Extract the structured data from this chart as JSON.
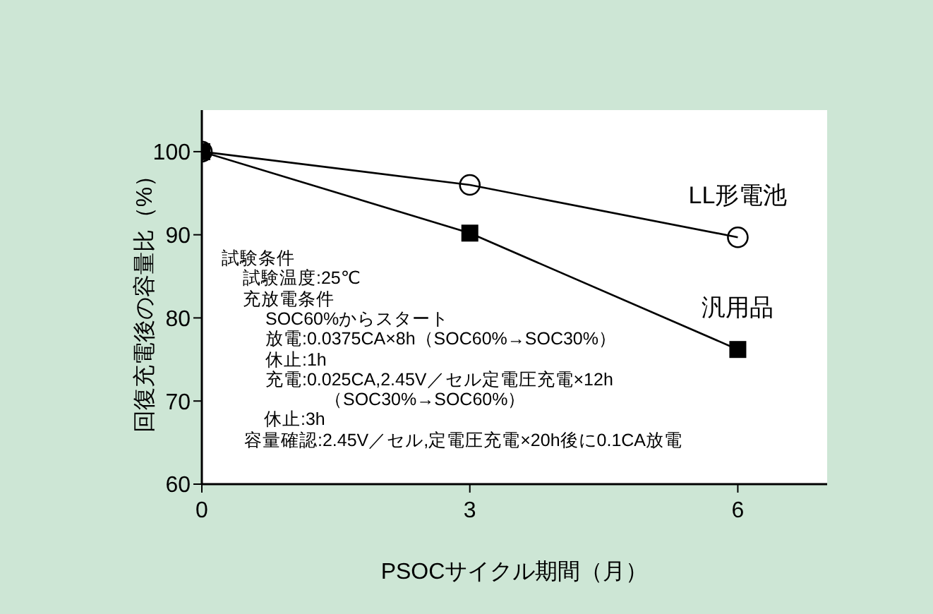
{
  "chart_data": {
    "type": "line",
    "xlabel": "PSOCサイクル期間（月）",
    "ylabel": "回復充電後の容量比（%）",
    "x": [
      0,
      3,
      6
    ],
    "series": [
      {
        "name": "LL形電池",
        "color": "#000000",
        "marker": "circle",
        "values": [
          100,
          96,
          89.7
        ]
      },
      {
        "name": "汎用品",
        "color": "#000000",
        "marker": "square",
        "values": [
          100,
          90.2,
          76.2
        ]
      }
    ],
    "xlim": [
      0,
      7
    ],
    "xticks": [
      0,
      3,
      6
    ],
    "ylim": [
      60,
      105
    ],
    "yticks": [
      60,
      70,
      80,
      90,
      100
    ],
    "grid": false,
    "legend": false,
    "annotations": [
      "試験条件",
      "試験温度:25℃",
      "充放電条件",
      "SOC60%からスタート",
      "放電:0.0375CA×8h（SOC60%→SOC30%）",
      "休止:1h",
      "充電:0.025CA,2.45V／セル定電圧充電×12h",
      "（SOC30%→SOC60%）",
      "休止:3h",
      "容量確認:2.45V／セル,定電圧充電×20h後に0.1CA放電"
    ]
  }
}
